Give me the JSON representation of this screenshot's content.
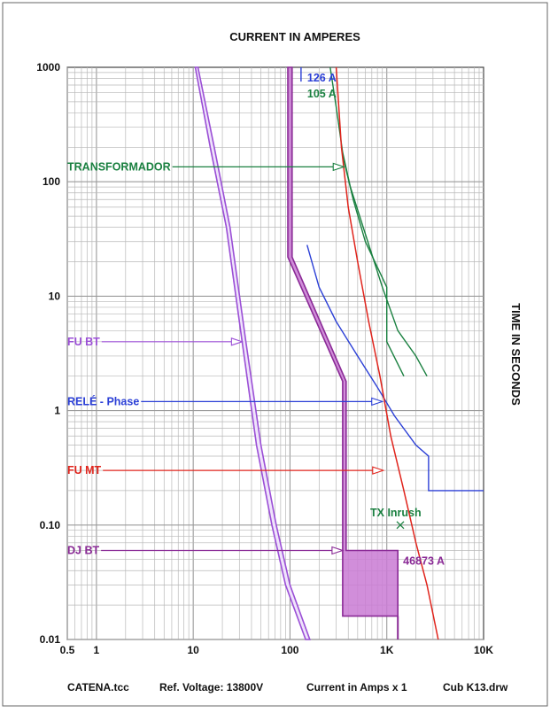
{
  "chart_data": {
    "type": "line",
    "title": "CURRENT IN AMPERES",
    "ylabel": "TIME IN SECONDS",
    "x_scale": "log",
    "y_scale": "log",
    "xlim": [
      0.5,
      10000
    ],
    "ylim": [
      0.01,
      1000
    ],
    "x_ticks": [
      {
        "value": 0.5,
        "label": "0.5"
      },
      {
        "value": 1,
        "label": "1"
      },
      {
        "value": 10,
        "label": "10"
      },
      {
        "value": 100,
        "label": "100"
      },
      {
        "value": 1000,
        "label": "1K"
      },
      {
        "value": 10000,
        "label": "10K"
      }
    ],
    "y_ticks": [
      {
        "value": 1000,
        "label": "1000"
      },
      {
        "value": 100,
        "label": "100"
      },
      {
        "value": 10,
        "label": "10"
      },
      {
        "value": 1,
        "label": "1"
      },
      {
        "value": 0.1,
        "label": "0.10"
      },
      {
        "value": 0.01,
        "label": "0.01"
      }
    ],
    "grid": true,
    "colors": {
      "fu_bt": "#9b4fd6",
      "dj_bt": "#8a2a96",
      "dj_bt_fill": "#c97ad4",
      "rele": "#2b3fd6",
      "fu_mt": "#e0241c",
      "transformer": "#1a8040",
      "grid": "#b8b8b8"
    },
    "series": [
      {
        "key": "fu_bt",
        "name": "FU BT",
        "label_y": 4.0,
        "arrow_x": 32,
        "band_min": [
          [
            10.5,
            1000
          ],
          [
            15,
            200
          ],
          [
            22,
            40
          ],
          [
            32,
            4
          ],
          [
            45,
            0.5
          ],
          [
            65,
            0.1
          ],
          [
            90,
            0.03
          ],
          [
            145,
            0.01
          ]
        ],
        "band_max": [
          [
            11.2,
            1000
          ],
          [
            16.5,
            200
          ],
          [
            24,
            40
          ],
          [
            35,
            4
          ],
          [
            50,
            0.5
          ],
          [
            72,
            0.1
          ],
          [
            100,
            0.03
          ],
          [
            160,
            0.01
          ]
        ]
      },
      {
        "key": "dj_bt",
        "name": "DJ BT",
        "label_y": 0.06,
        "arrow_x": 350,
        "pickup": "46873 A",
        "band_min": [
          [
            95,
            1000
          ],
          [
            95,
            22
          ],
          [
            350,
            1.8
          ],
          [
            350,
            0.016
          ],
          [
            1300,
            0.016
          ]
        ],
        "band_max": [
          [
            105,
            1000
          ],
          [
            105,
            22
          ],
          [
            380,
            1.8
          ],
          [
            380,
            0.06
          ],
          [
            1300,
            0.06
          ],
          [
            1300,
            0.01
          ]
        ]
      },
      {
        "key": "rele",
        "name": "RELÉ - Phase",
        "label_y": 1.2,
        "arrow_x": 900,
        "label_top": "126 A",
        "curve": [
          [
            130,
            1000
          ],
          [
            130,
            750
          ]
        ],
        "curve2": [
          [
            150,
            28
          ],
          [
            200,
            12
          ],
          [
            300,
            6
          ],
          [
            500,
            3
          ],
          [
            800,
            1.6
          ],
          [
            1200,
            0.9
          ],
          [
            2000,
            0.5
          ],
          [
            2700,
            0.4
          ],
          [
            2700,
            0.2
          ],
          [
            10000,
            0.2
          ]
        ]
      },
      {
        "key": "fu_mt",
        "name": "FU MT",
        "label_y": 0.3,
        "arrow_x": 920,
        "curve": [
          [
            300,
            1000
          ],
          [
            340,
            200
          ],
          [
            400,
            60
          ],
          [
            500,
            20
          ],
          [
            650,
            6
          ],
          [
            850,
            2
          ],
          [
            1100,
            0.6
          ],
          [
            1500,
            0.2
          ],
          [
            2000,
            0.07
          ],
          [
            2600,
            0.03
          ],
          [
            3400,
            0.01
          ]
        ]
      },
      {
        "key": "transformer",
        "name": "TRANSFORMADOR",
        "label_y": 135,
        "arrow_x": 360,
        "label_top": "105 A",
        "curve_a": [
          [
            260,
            1000
          ],
          [
            300,
            450
          ],
          [
            350,
            180
          ],
          [
            420,
            90
          ],
          [
            600,
            35
          ],
          [
            900,
            12
          ],
          [
            1300,
            5
          ],
          [
            2000,
            3
          ],
          [
            2600,
            2
          ]
        ],
        "curve_b": [
          [
            350,
            170
          ],
          [
            450,
            70
          ],
          [
            600,
            30
          ],
          [
            1000,
            12
          ],
          [
            1000,
            4
          ],
          [
            1500,
            2
          ]
        ],
        "inrush": {
          "label": "TX Inrush",
          "x": 1380,
          "y": 0.1
        }
      }
    ]
  },
  "footer": {
    "file": "CATENA.tcc",
    "ref_voltage": "Ref. Voltage: 13800V",
    "current_scale": "Current in Amps x 1",
    "drawing": "Cub K13.drw"
  }
}
